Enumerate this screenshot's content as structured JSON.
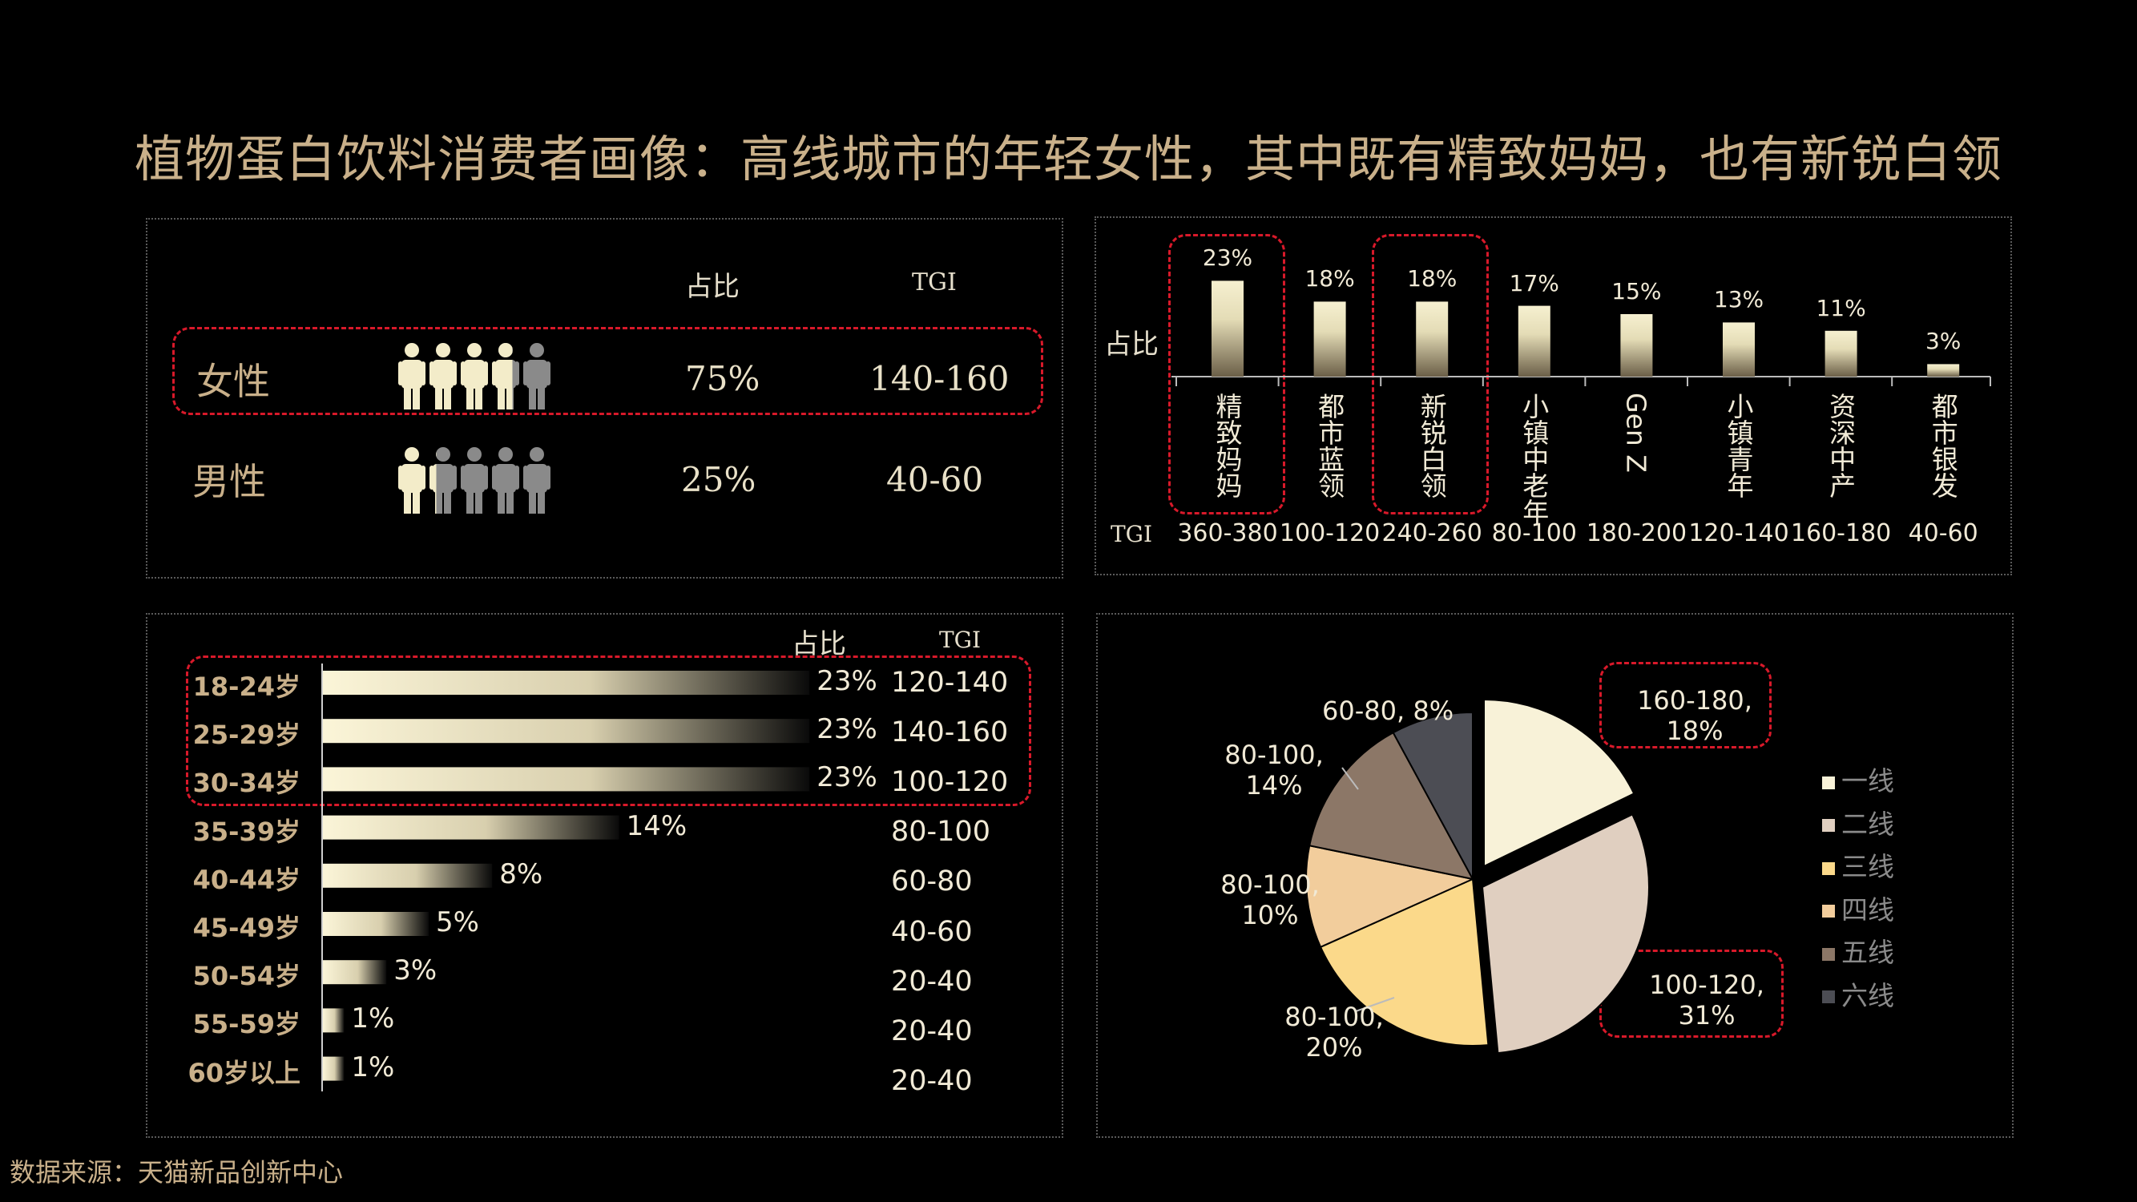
{
  "title": "植物蛋白饮料消费者画像：高线城市的年轻女性，其中既有精致妈妈，也有新锐白领",
  "source": "数据来源：天猫新品创新中心",
  "colors": {
    "accent_text": "#c9b08a",
    "highlight_dash": "#d8192a",
    "cream": "#f3ecc9",
    "grey_person": "#8a8a8a"
  },
  "gender": {
    "header_share": "占比",
    "header_tgi": "TGI",
    "rows": [
      {
        "label": "女性",
        "share": "75%",
        "tgi": "140-160",
        "share_value": 0.75
      },
      {
        "label": "男性",
        "share": "25%",
        "tgi": "40-60",
        "share_value": 0.25
      }
    ],
    "icon": "person-icon"
  },
  "chart_data": [
    {
      "type": "bar",
      "id": "crowd",
      "y_axis_label": "占比",
      "x_row_label": "TGI",
      "categories": [
        "精致妈妈",
        "都市蓝领",
        "新锐白领",
        "小镇中老年",
        "Gen Z",
        "小镇青年",
        "资深中产",
        "都市银发"
      ],
      "values": [
        23,
        18,
        18,
        17,
        15,
        13,
        11,
        3
      ],
      "data_labels": [
        "23%",
        "18%",
        "18%",
        "17%",
        "15%",
        "13%",
        "11%",
        "3%"
      ],
      "tgi": [
        "360-380",
        "100-120",
        "240-260",
        "80-100",
        "180-200",
        "120-140",
        "160-180",
        "40-60"
      ],
      "highlighted": [
        "精致妈妈",
        "新锐白领"
      ]
    },
    {
      "type": "bar",
      "id": "age",
      "orientation": "horizontal",
      "header_share": "占比",
      "header_tgi": "TGI",
      "categories": [
        "18-24岁",
        "25-29岁",
        "30-34岁",
        "35-39岁",
        "40-44岁",
        "45-49岁",
        "50-54岁",
        "55-59岁",
        "60岁以上"
      ],
      "values": [
        23,
        23,
        23,
        14,
        8,
        5,
        3,
        1,
        1
      ],
      "data_labels": [
        "23%",
        "23%",
        "23%",
        "14%",
        "8%",
        "5%",
        "3%",
        "1%",
        "1%"
      ],
      "tgi": [
        "120-140",
        "140-160",
        "100-120",
        "80-100",
        "60-80",
        "40-60",
        "20-40",
        "20-40",
        "20-40"
      ],
      "highlighted": [
        "18-24岁",
        "25-29岁",
        "30-34岁"
      ]
    },
    {
      "type": "pie",
      "id": "city",
      "series": [
        {
          "name": "一线",
          "value": 18,
          "label": "160-180,\n18%",
          "color": "#f8f2d8"
        },
        {
          "name": "二线",
          "value": 31,
          "label": "100-120,\n31%",
          "color": "#e0cfc0"
        },
        {
          "name": "三线",
          "value": 20,
          "label": "80-100,\n20%",
          "color": "#fbd98a"
        },
        {
          "name": "四线",
          "value": 10,
          "label": "80-100,\n10%",
          "color": "#f2cd9c"
        },
        {
          "name": "五线",
          "value": 14,
          "label": "80-100,\n14%",
          "color": "#8c7767"
        },
        {
          "name": "六线",
          "value": 8,
          "label": "60-80, 8%",
          "color": "#4c4d54"
        }
      ],
      "legend_position": "right",
      "highlighted": [
        "一线",
        "二线"
      ]
    }
  ]
}
